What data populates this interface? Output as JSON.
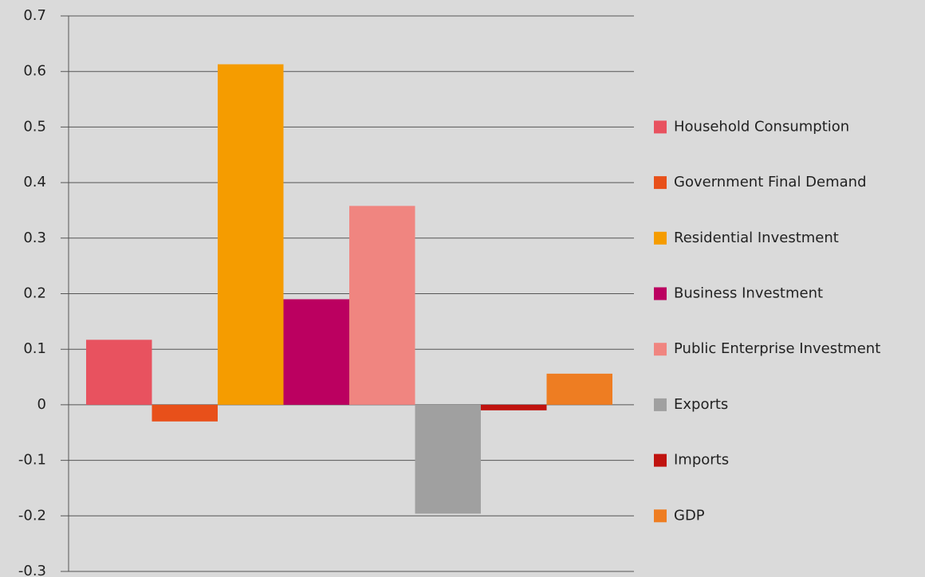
{
  "chart_data": {
    "type": "bar",
    "categories": [
      null
    ],
    "series": [
      {
        "name": "Household Consumption",
        "color": "#e8525f",
        "values": [
          0.117
        ]
      },
      {
        "name": "Government Final Demand",
        "color": "#e8501a",
        "values": [
          -0.03
        ]
      },
      {
        "name": "Residential Investment",
        "color": "#f59c00",
        "values": [
          0.613
        ]
      },
      {
        "name": "Business Investment",
        "color": "#bb0060",
        "values": [
          0.19
        ]
      },
      {
        "name": "Public Enterprise Investment",
        "color": "#f08580",
        "values": [
          0.358
        ]
      },
      {
        "name": "Exports",
        "color": "#a0a0a0",
        "values": [
          -0.196
        ]
      },
      {
        "name": "Imports",
        "color": "#c0130f",
        "values": [
          -0.01
        ]
      },
      {
        "name": "GDP",
        "color": "#ee7d22",
        "values": [
          0.056
        ]
      }
    ],
    "ylim": [
      -0.3,
      0.7
    ],
    "yticks": [
      -0.3,
      -0.2,
      -0.1,
      0,
      0.1,
      0.2,
      0.3,
      0.4,
      0.5,
      0.6,
      0.7
    ],
    "grid": true,
    "legend": "right"
  }
}
